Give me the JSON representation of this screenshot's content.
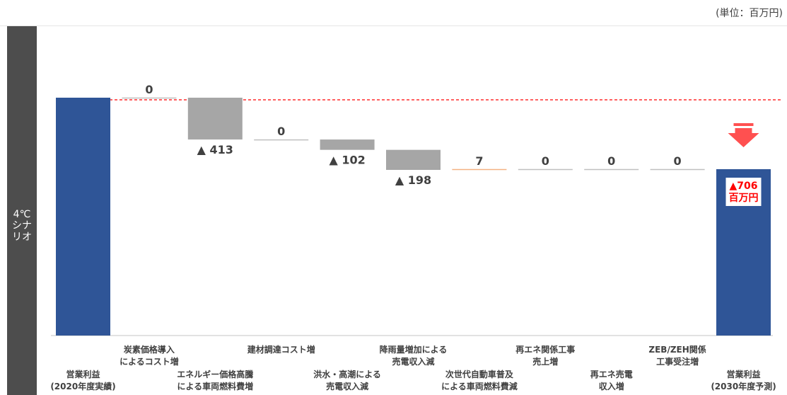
{
  "unit_label": "(単位：百万円)",
  "scenario_label": "4℃\nシナ\nリオ",
  "colors": {
    "bar_total": "#2f5597",
    "bar_decrease": "#a6a6a6",
    "bar_increase": "#f4b183",
    "baseline_dashed": "#ff0000",
    "arrow": "#ff5050",
    "result_text": "#ff0000",
    "band": "#4d4d4d"
  },
  "chart_data": {
    "type": "waterfall",
    "baseline_reference": "2020年度実績",
    "categories": [
      "営業利益\n(2020年度実績)",
      "炭素価格導入\nによるコスト増",
      "エネルギー価格高騰\nによる車両燃料費増",
      "建材調達コスト増",
      "洪水・高潮による\n売電収入減",
      "降雨量増加による\n売電収入減",
      "次世代自動車普及\nによる車両燃料費減",
      "再エネ関係工事\n売上増",
      "再エネ売電\n収入増",
      "ZEB/ZEH関係\n工事受注増",
      "営業利益\n(2030年度予測)"
    ],
    "label_row": [
      "bottom",
      "top",
      "bottom",
      "top",
      "bottom",
      "top",
      "bottom",
      "top",
      "bottom",
      "top",
      "bottom"
    ],
    "kinds": [
      "total",
      "delta",
      "delta",
      "delta",
      "delta",
      "delta",
      "delta",
      "delta",
      "delta",
      "delta",
      "total"
    ],
    "deltas": [
      null,
      0,
      -413,
      0,
      -102,
      -198,
      7,
      0,
      0,
      0,
      null
    ],
    "value_labels": [
      "",
      "0",
      "▲ 413",
      "0",
      "▲ 102",
      "▲ 198",
      "7",
      "0",
      "0",
      "0",
      ""
    ],
    "result_label": [
      "▲706",
      "百万円"
    ],
    "result_change": -706
  }
}
